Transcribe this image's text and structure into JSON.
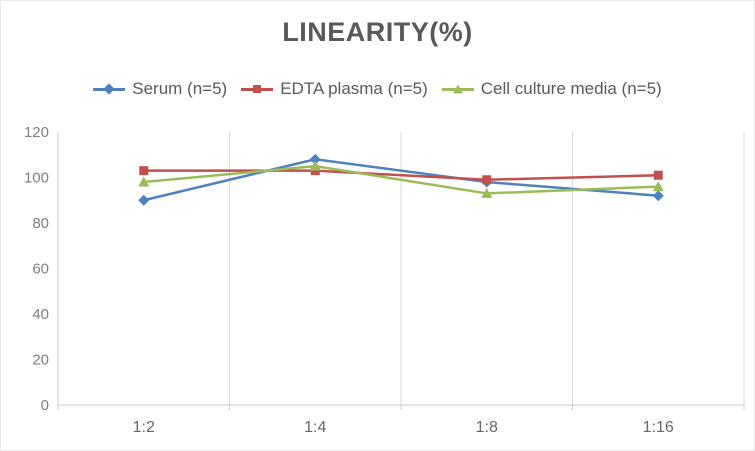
{
  "title": "LINEARITY(%)",
  "chart_data": {
    "type": "line",
    "title": "LINEARITY(%)",
    "categories": [
      "1:2",
      "1:4",
      "1:8",
      "1:16"
    ],
    "series": [
      {
        "name": "Serum (n=5)",
        "color": "#4F81BD",
        "marker": "diamond",
        "values": [
          90,
          108,
          98,
          92
        ]
      },
      {
        "name": "EDTA plasma (n=5)",
        "color": "#C0504D",
        "marker": "square",
        "values": [
          103,
          103,
          99,
          101
        ]
      },
      {
        "name": "Cell culture media (n=5)",
        "color": "#9BBB59",
        "marker": "triangle",
        "values": [
          98,
          105,
          93,
          96
        ]
      }
    ],
    "xlabel": "",
    "ylabel": "",
    "ylim": [
      0,
      120
    ],
    "ytick_step": 20,
    "yticks": [
      0,
      20,
      40,
      60,
      80,
      100,
      120
    ],
    "grid": "vertical-only",
    "legend_position": "top"
  },
  "style_colors": {
    "title_text": "#595959",
    "legend_text": "#595959",
    "ytick_text": "#7f7f7f",
    "xtick_text": "#666666",
    "gridline": "#d9d9d9",
    "axis_line": "#c9c9c9",
    "background": "#ffffff"
  }
}
